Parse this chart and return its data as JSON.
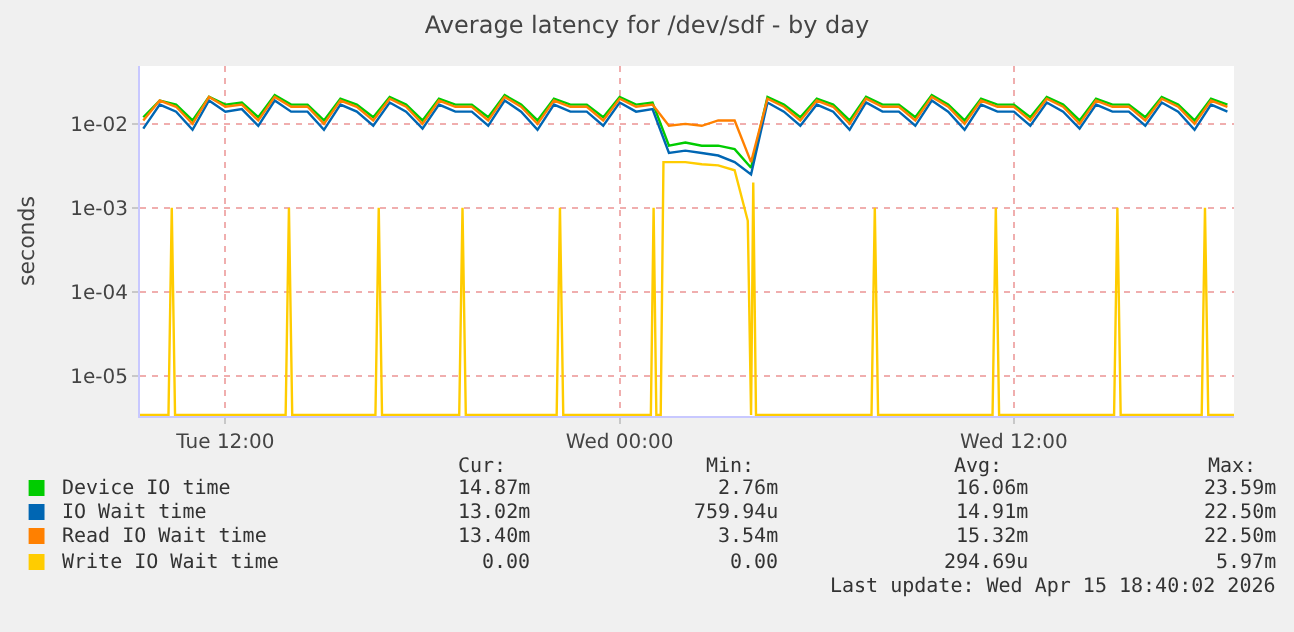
{
  "chart_data": {
    "type": "line",
    "title": "Average latency for /dev/sdf - by day",
    "ylabel": "seconds",
    "x": [
      "2026-04-14T09:30",
      "2026-04-14T10:00",
      "2026-04-14T10:30",
      "2026-04-14T11:00",
      "2026-04-14T11:30",
      "2026-04-14T12:00",
      "2026-04-14T12:30",
      "2026-04-14T13:00",
      "2026-04-14T13:30",
      "2026-04-14T14:00",
      "2026-04-14T14:30",
      "2026-04-14T15:00",
      "2026-04-14T15:30",
      "2026-04-14T16:00",
      "2026-04-14T16:30",
      "2026-04-14T17:00",
      "2026-04-14T17:30",
      "2026-04-14T18:00",
      "2026-04-14T18:30",
      "2026-04-14T19:00",
      "2026-04-14T19:30",
      "2026-04-14T20:00",
      "2026-04-14T20:30",
      "2026-04-14T21:00",
      "2026-04-14T21:30",
      "2026-04-14T22:00",
      "2026-04-14T22:30",
      "2026-04-14T23:00",
      "2026-04-14T23:30",
      "2026-04-15T00:00",
      "2026-04-15T00:30",
      "2026-04-15T01:00",
      "2026-04-15T01:30",
      "2026-04-15T02:00",
      "2026-04-15T02:30",
      "2026-04-15T03:00",
      "2026-04-15T03:30",
      "2026-04-15T04:00",
      "2026-04-15T04:30",
      "2026-04-15T05:00",
      "2026-04-15T05:30",
      "2026-04-15T06:00",
      "2026-04-15T06:30",
      "2026-04-15T07:00",
      "2026-04-15T07:30",
      "2026-04-15T08:00",
      "2026-04-15T08:30",
      "2026-04-15T09:00",
      "2026-04-15T09:30",
      "2026-04-15T10:00",
      "2026-04-15T10:30",
      "2026-04-15T11:00",
      "2026-04-15T11:30",
      "2026-04-15T12:00",
      "2026-04-15T12:30",
      "2026-04-15T13:00",
      "2026-04-15T13:30",
      "2026-04-15T14:00",
      "2026-04-15T14:30",
      "2026-04-15T15:00",
      "2026-04-15T15:30",
      "2026-04-15T16:00",
      "2026-04-15T16:30",
      "2026-04-15T17:00",
      "2026-04-15T17:30",
      "2026-04-15T18:00",
      "2026-04-15T18:30"
    ],
    "series": [
      {
        "name": "Device IO time",
        "color": "#00cc00",
        "values": [
          0.012,
          0.019,
          0.017,
          0.011,
          0.021,
          0.017,
          0.018,
          0.012,
          0.022,
          0.017,
          0.017,
          0.011,
          0.02,
          0.017,
          0.012,
          0.021,
          0.017,
          0.011,
          0.02,
          0.017,
          0.017,
          0.012,
          0.022,
          0.017,
          0.011,
          0.02,
          0.017,
          0.017,
          0.012,
          0.021,
          0.017,
          0.018,
          0.0055,
          0.006,
          0.0055,
          0.0055,
          0.005,
          0.003,
          0.021,
          0.017,
          0.012,
          0.02,
          0.017,
          0.011,
          0.021,
          0.017,
          0.017,
          0.012,
          0.022,
          0.017,
          0.011,
          0.02,
          0.017,
          0.017,
          0.012,
          0.021,
          0.017,
          0.011,
          0.02,
          0.017,
          0.017,
          0.012,
          0.021,
          0.017,
          0.011,
          0.02,
          0.017
        ]
      },
      {
        "name": "IO Wait time",
        "color": "#0066b3",
        "values": [
          0.0088,
          0.017,
          0.014,
          0.0085,
          0.019,
          0.014,
          0.015,
          0.0095,
          0.019,
          0.014,
          0.014,
          0.0085,
          0.017,
          0.014,
          0.0095,
          0.018,
          0.014,
          0.0088,
          0.017,
          0.014,
          0.014,
          0.0095,
          0.019,
          0.014,
          0.0085,
          0.017,
          0.014,
          0.014,
          0.0095,
          0.018,
          0.014,
          0.015,
          0.0045,
          0.0048,
          0.0045,
          0.0042,
          0.0035,
          0.0025,
          0.018,
          0.014,
          0.0095,
          0.017,
          0.014,
          0.0085,
          0.018,
          0.014,
          0.014,
          0.0095,
          0.019,
          0.014,
          0.0085,
          0.017,
          0.014,
          0.014,
          0.0095,
          0.018,
          0.014,
          0.0088,
          0.017,
          0.014,
          0.014,
          0.0095,
          0.018,
          0.014,
          0.0085,
          0.017,
          0.014
        ]
      },
      {
        "name": "Read IO Wait time",
        "color": "#ff8000",
        "values": [
          0.011,
          0.019,
          0.016,
          0.01,
          0.021,
          0.016,
          0.017,
          0.011,
          0.021,
          0.016,
          0.016,
          0.01,
          0.019,
          0.016,
          0.011,
          0.02,
          0.016,
          0.01,
          0.019,
          0.016,
          0.016,
          0.011,
          0.021,
          0.016,
          0.01,
          0.019,
          0.016,
          0.016,
          0.011,
          0.02,
          0.016,
          0.017,
          0.0095,
          0.01,
          0.0095,
          0.011,
          0.011,
          0.0035,
          0.02,
          0.016,
          0.011,
          0.019,
          0.016,
          0.01,
          0.02,
          0.016,
          0.016,
          0.011,
          0.021,
          0.016,
          0.01,
          0.019,
          0.016,
          0.016,
          0.011,
          0.02,
          0.016,
          0.01,
          0.019,
          0.016,
          0.016,
          0.011,
          0.02,
          0.016,
          0.01,
          0.019,
          0.016
        ]
      },
      {
        "name": "Write IO Wait time",
        "color": "#ffcc00",
        "x": [
          "2026-04-14T09:24",
          "2026-04-14T10:16",
          "2026-04-14T10:22",
          "2026-04-14T10:28",
          "2026-04-14T13:50",
          "2026-04-14T13:56",
          "2026-04-14T14:02",
          "2026-04-14T16:34",
          "2026-04-14T16:40",
          "2026-04-14T16:46",
          "2026-04-14T19:07",
          "2026-04-14T19:13",
          "2026-04-14T19:19",
          "2026-04-14T22:05",
          "2026-04-14T22:11",
          "2026-04-14T22:17",
          "2026-04-15T00:57",
          "2026-04-15T01:02",
          "2026-04-15T01:07",
          "2026-04-15T01:15",
          "2026-04-15T01:20",
          "2026-04-15T01:30",
          "2026-04-15T02:00",
          "2026-04-15T02:30",
          "2026-04-15T03:00",
          "2026-04-15T03:30",
          "2026-04-15T03:54",
          "2026-04-15T04:00",
          "2026-04-15T04:04",
          "2026-04-15T04:09",
          "2026-04-15T07:40",
          "2026-04-15T07:46",
          "2026-04-15T07:52",
          "2026-04-15T11:21",
          "2026-04-15T11:27",
          "2026-04-15T11:33",
          "2026-04-15T15:03",
          "2026-04-15T15:09",
          "2026-04-15T15:15",
          "2026-04-15T17:43",
          "2026-04-15T17:49",
          "2026-04-15T17:55",
          "2026-04-15T18:42"
        ],
        "values": [
          3.4e-06,
          3.4e-06,
          0.001,
          3.4e-06,
          3.4e-06,
          0.001,
          3.4e-06,
          3.4e-06,
          0.001,
          3.4e-06,
          3.4e-06,
          0.001,
          3.4e-06,
          3.4e-06,
          0.001,
          3.4e-06,
          3.4e-06,
          0.001,
          3.4e-06,
          3.4e-06,
          0.0035,
          0.0035,
          0.0035,
          0.0033,
          0.0032,
          0.0028,
          0.0007,
          3.4e-06,
          0.002,
          3.4e-06,
          3.4e-06,
          0.001,
          3.4e-06,
          3.4e-06,
          0.001,
          3.4e-06,
          3.4e-06,
          0.001,
          3.4e-06,
          3.4e-06,
          0.001,
          3.4e-06,
          3.4e-06
        ]
      }
    ],
    "log": "y",
    "xlim": [
      "2026-04-14T09:24",
      "2026-04-15T18:42"
    ],
    "ylim": [
      3.3e-06,
      0.049
    ],
    "xticks": [
      {
        "value": "2026-04-14T12:00",
        "label": "Tue 12:00"
      },
      {
        "value": "2026-04-15T00:00",
        "label": "Wed 00:00"
      },
      {
        "value": "2026-04-15T12:00",
        "label": "Wed 12:00"
      }
    ],
    "yticks": [
      {
        "value": 1e-05,
        "label": "1e-05"
      },
      {
        "value": 0.0001,
        "label": "1e-04"
      },
      {
        "value": 0.001,
        "label": "1e-03"
      },
      {
        "value": 0.01,
        "label": "1e-02"
      }
    ],
    "grid": true,
    "legend": "bottom",
    "marker": "none",
    "line_style": "solid",
    "annotations": [
      "Cur:",
      "Min:",
      "Avg:",
      "Max:",
      "14.87m",
      "2.76m",
      "16.06m",
      "23.59m",
      "13.02m",
      "759.94u",
      "14.91m",
      "22.50m",
      "13.40m",
      "3.54m",
      "15.32m",
      "22.50m",
      "0.00",
      "0.00",
      "294.69u",
      "5.97m",
      "Last update: Wed Apr 15 18:40:02 2026"
    ]
  }
}
